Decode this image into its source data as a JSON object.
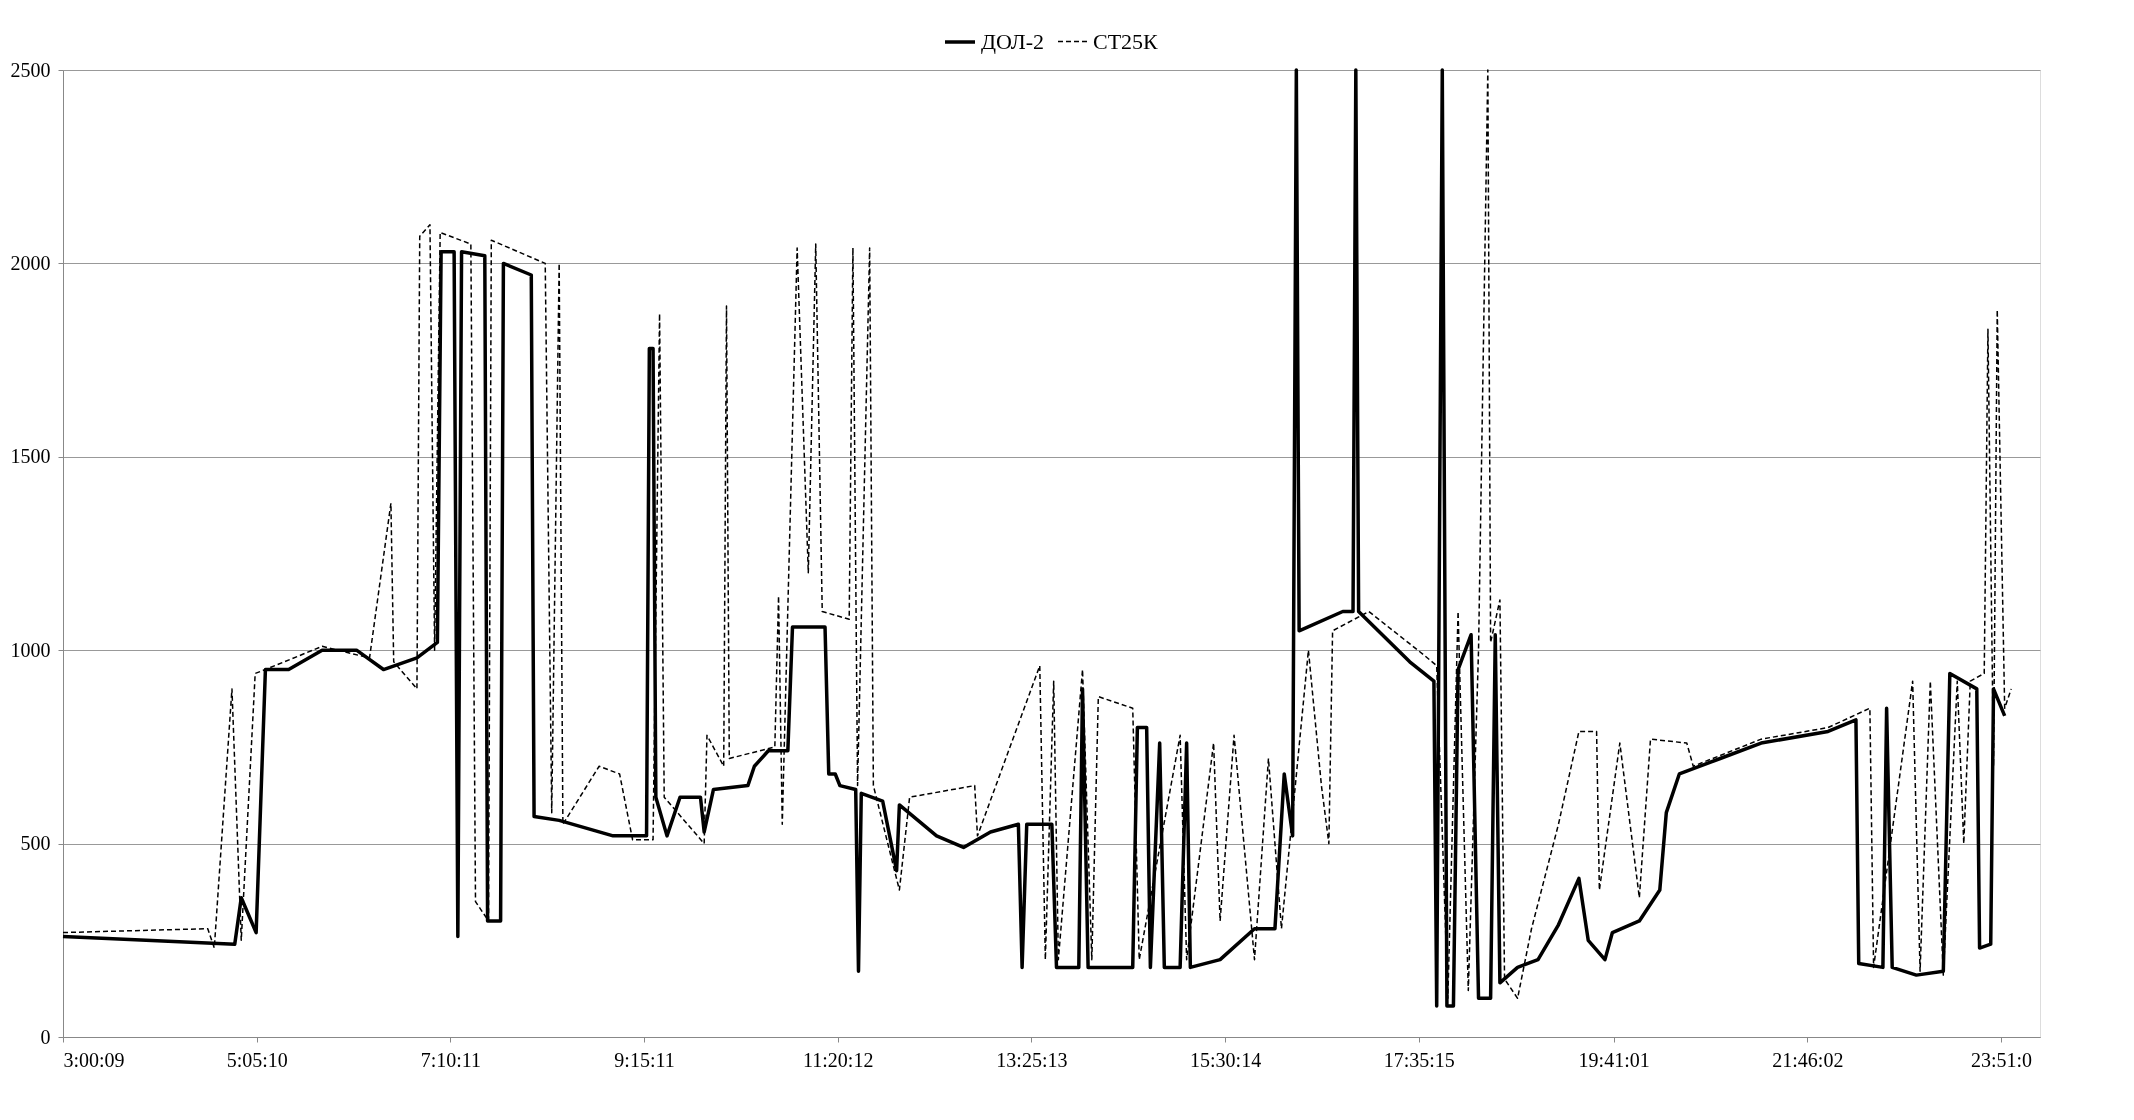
{
  "chart_data": {
    "type": "line",
    "xlim": [
      3.0025,
      24.27
    ],
    "ylim": [
      0,
      2500
    ],
    "xticks": [
      {
        "value": 3.0025,
        "label": "3:00:09"
      },
      {
        "value": 5.0861,
        "label": "5:05:10"
      },
      {
        "value": 7.1697,
        "label": "7:10:11"
      },
      {
        "value": 9.2531,
        "label": "9:15:11"
      },
      {
        "value": 11.3367,
        "label": "11:20:12"
      },
      {
        "value": 13.4203,
        "label": "13:25:13"
      },
      {
        "value": 15.5039,
        "label": "15:30:14"
      },
      {
        "value": 17.5875,
        "label": "17:35:15"
      },
      {
        "value": 19.6836,
        "label": "19:41:01"
      },
      {
        "value": 21.7672,
        "label": "21:46:02"
      },
      {
        "value": 23.85,
        "label": "23:51:0"
      }
    ],
    "yticks": [
      0,
      500,
      1000,
      1500,
      2000,
      2500
    ],
    "grid": "y",
    "legend": "top",
    "marker": "none",
    "series": [
      {
        "name": "ДОЛ-2",
        "color": "#000000",
        "line_style": "solid",
        "x": [
          3.0025,
          4.85,
          4.92,
          5.08,
          5.18,
          5.43,
          5.79,
          6.16,
          6.45,
          6.81,
          7.03,
          7.07,
          7.21,
          7.25,
          7.29,
          7.54,
          7.57,
          7.71,
          7.74,
          8.04,
          8.07,
          8.34,
          8.92,
          9.28,
          9.31,
          9.35,
          9.38,
          9.5,
          9.64,
          9.86,
          9.9,
          10.0,
          10.37,
          10.44,
          10.59,
          10.8,
          10.85,
          11.2,
          11.24,
          11.31,
          11.36,
          11.53,
          11.56,
          11.59,
          11.82,
          11.97,
          12.0,
          12.4,
          12.69,
          12.98,
          13.28,
          13.32,
          13.37,
          13.64,
          13.69,
          13.93,
          13.97,
          14.03,
          14.51,
          14.56,
          14.66,
          14.7,
          14.8,
          14.85,
          15.02,
          15.09,
          15.13,
          15.45,
          15.82,
          16.04,
          16.14,
          16.23,
          16.27,
          16.3,
          16.77,
          16.88,
          16.91,
          16.94,
          17.49,
          17.75,
          17.78,
          17.84,
          17.89,
          17.96,
          18.01,
          18.15,
          18.23,
          18.36,
          18.41,
          18.46,
          18.65,
          18.87,
          19.09,
          19.31,
          19.41,
          19.59,
          19.67,
          19.96,
          20.18,
          20.25,
          20.39,
          20.83,
          21.27,
          21.99,
          22.29,
          22.32,
          22.58,
          22.62,
          22.68,
          22.94,
          23.23,
          23.3,
          23.59,
          23.62,
          23.74,
          23.77,
          23.89
        ],
        "values": [
          260,
          240,
          360,
          270,
          950,
          950,
          1000,
          1000,
          950,
          980,
          1020,
          2030,
          2030,
          260,
          2030,
          2020,
          300,
          300,
          2000,
          1970,
          570,
          560,
          520,
          520,
          1780,
          1780,
          620,
          520,
          620,
          620,
          530,
          640,
          650,
          700,
          740,
          740,
          1060,
          1060,
          680,
          680,
          650,
          640,
          170,
          630,
          610,
          430,
          600,
          520,
          490,
          530,
          550,
          180,
          550,
          550,
          180,
          180,
          900,
          180,
          180,
          800,
          800,
          180,
          760,
          180,
          180,
          760,
          180,
          200,
          280,
          280,
          680,
          520,
          2500,
          1050,
          1100,
          1100,
          2500,
          1100,
          970,
          920,
          80,
          2500,
          80,
          80,
          950,
          1040,
          100,
          100,
          1040,
          140,
          180,
          200,
          290,
          410,
          250,
          200,
          270,
          300,
          380,
          580,
          680,
          720,
          760,
          790,
          820,
          190,
          180,
          850,
          180,
          160,
          170,
          940,
          900,
          230,
          240,
          900,
          830
        ]
      },
      {
        "name": "СТ25К",
        "color": "#000000",
        "line_style": "dashed",
        "x": [
          3.0025,
          4.56,
          4.63,
          4.82,
          4.92,
          5.07,
          5.18,
          5.79,
          6.3,
          6.53,
          6.56,
          6.81,
          6.84,
          6.95,
          7.0,
          7.06,
          7.39,
          7.44,
          7.58,
          7.61,
          8.19,
          8.26,
          8.34,
          8.38,
          8.77,
          8.99,
          9.13,
          9.35,
          9.42,
          9.47,
          9.9,
          9.93,
          10.11,
          10.14,
          10.17,
          10.66,
          10.7,
          10.74,
          10.9,
          11.02,
          11.1,
          11.17,
          11.46,
          11.5,
          11.55,
          11.68,
          11.72,
          12.0,
          12.11,
          12.81,
          12.84,
          13.51,
          13.57,
          13.66,
          13.71,
          13.97,
          14.07,
          14.14,
          14.51,
          14.58,
          15.02,
          15.09,
          15.38,
          15.45,
          15.6,
          15.82,
          15.97,
          16.11,
          16.4,
          16.54,
          16.62,
          16.66,
          17.05,
          17.63,
          17.78,
          17.9,
          18.01,
          18.12,
          18.23,
          18.33,
          18.36,
          18.46,
          18.51,
          18.65,
          18.8,
          19.09,
          19.31,
          19.5,
          19.53,
          19.75,
          19.96,
          20.08,
          20.47,
          20.54,
          21.27,
          21.99,
          22.44,
          22.48,
          22.9,
          22.98,
          23.09,
          23.23,
          23.38,
          23.45,
          23.52,
          23.67,
          23.71,
          23.77,
          23.81,
          23.89,
          23.96
        ],
        "values": [
          270,
          280,
          230,
          900,
          250,
          940,
          950,
          1010,
          980,
          1380,
          970,
          900,
          2070,
          2100,
          1000,
          2080,
          2050,
          350,
          300,
          2060,
          2000,
          580,
          2000,
          550,
          700,
          680,
          510,
          510,
          1870,
          620,
          500,
          780,
          700,
          1890,
          720,
          750,
          1140,
          550,
          2040,
          1200,
          2050,
          1100,
          1080,
          2040,
          650,
          2040,
          650,
          380,
          620,
          650,
          520,
          960,
          200,
          920,
          200,
          950,
          200,
          880,
          850,
          200,
          780,
          200,
          760,
          300,
          780,
          200,
          720,
          280,
          1000,
          650,
          500,
          1050,
          1100,
          990,
          960,
          100,
          1100,
          120,
          1000,
          2500,
          1020,
          1130,
          150,
          100,
          280,
          550,
          790,
          790,
          380,
          760,
          360,
          770,
          760,
          700,
          770,
          800,
          850,
          180,
          920,
          170,
          920,
          160,
          920,
          500,
          920,
          940,
          1830,
          700,
          1880,
          850,
          900
        ]
      }
    ]
  }
}
